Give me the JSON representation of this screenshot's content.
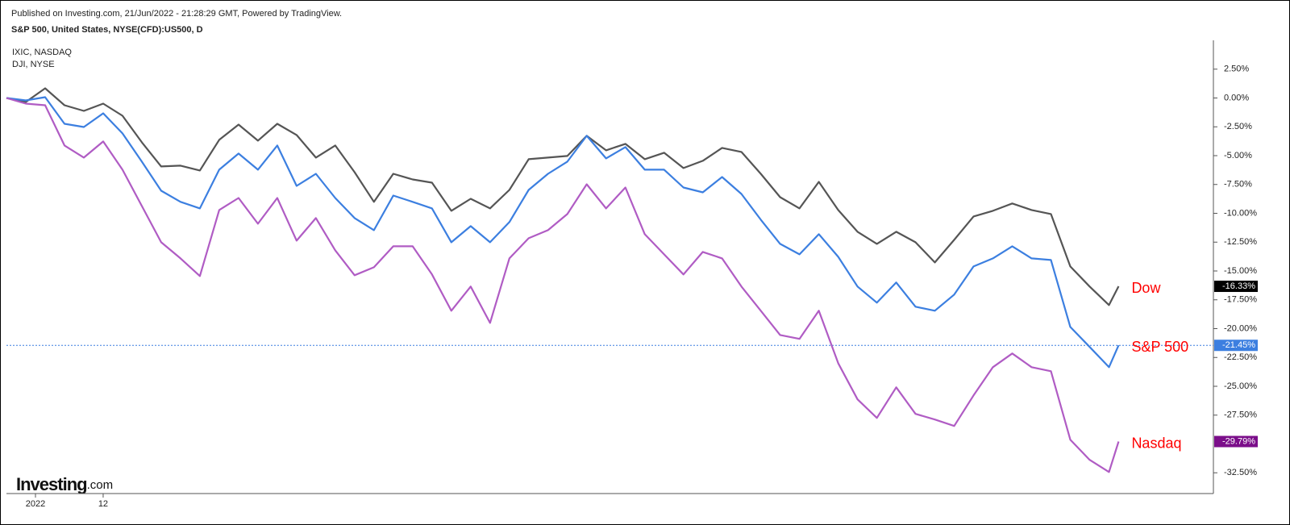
{
  "header": {
    "published": "Published on Investing.com, 21/Jun/2022 - 21:28:29 GMT, Powered by TradingView.",
    "logo": "Investing",
    "logo_suffix": ".com"
  },
  "chart_data": {
    "type": "line",
    "title": "S&P 500, United States, NYSE(CFD):US500, D",
    "symbols": [
      "IXIC, NASDAQ",
      "DJI, NYSE"
    ],
    "x": [
      0,
      2,
      4,
      6,
      8,
      10,
      12,
      14,
      16,
      18,
      20,
      22,
      24,
      26,
      28,
      30,
      32,
      34,
      36,
      38,
      40,
      42,
      44,
      46,
      48,
      50,
      52,
      54,
      56,
      58,
      60,
      62,
      64,
      66,
      68,
      70,
      72,
      74,
      76,
      78,
      80,
      82,
      84,
      86,
      88,
      90,
      92,
      94,
      96,
      98,
      100,
      102,
      104,
      106,
      108,
      110,
      112,
      114,
      115
    ],
    "xlim": [
      0,
      124.8
    ],
    "xticks": [
      {
        "value": 3,
        "label": "2022"
      },
      {
        "value": 10,
        "label": "12"
      }
    ],
    "ylim": [
      -34.3,
      5.0
    ],
    "yticks": [
      {
        "value": 2.5,
        "label": "2.50%"
      },
      {
        "value": 0,
        "label": "0.00%"
      },
      {
        "value": -2.5,
        "label": "-2.50%"
      },
      {
        "value": -5,
        "label": "-5.00%"
      },
      {
        "value": -7.5,
        "label": "-7.50%"
      },
      {
        "value": -10,
        "label": "-10.00%"
      },
      {
        "value": -12.5,
        "label": "-12.50%"
      },
      {
        "value": -15,
        "label": "-15.00%"
      },
      {
        "value": -17.5,
        "label": "-17.50%"
      },
      {
        "value": -20,
        "label": "-20.00%"
      },
      {
        "value": -22.5,
        "label": "-22.50%"
      },
      {
        "value": -25,
        "label": "-25.00%"
      },
      {
        "value": -27.5,
        "label": "-27.50%"
      },
      {
        "value": -32.5,
        "label": "-32.50%"
      }
    ],
    "series": [
      {
        "name": "Dow",
        "color": "#555555",
        "label_color": "#000000",
        "end_label": "-16.33%",
        "values": [
          0,
          -0.35,
          0.84,
          -0.63,
          -1.12,
          -0.49,
          -1.54,
          -3.84,
          -5.94,
          -5.87,
          -6.29,
          -3.63,
          -2.31,
          -3.7,
          -2.24,
          -3.21,
          -5.17,
          -4.12,
          -6.43,
          -9.01,
          -6.57,
          -7.06,
          -7.34,
          -9.78,
          -8.74,
          -9.57,
          -7.97,
          -5.31,
          -5.17,
          -5.03,
          -3.28,
          -4.54,
          -3.98,
          -5.31,
          -4.75,
          -6.08,
          -5.45,
          -4.33,
          -4.68,
          -6.57,
          -8.6,
          -9.57,
          -7.27,
          -9.71,
          -11.6,
          -12.65,
          -11.6,
          -12.51,
          -14.26,
          -12.3,
          -10.27,
          -9.78,
          -9.15,
          -9.71,
          -10.06,
          -14.61,
          -16.35,
          -17.96,
          -16.33
        ]
      },
      {
        "name": "S&P 500",
        "color": "#3c7fe0",
        "label_color": "#3c7fe0",
        "end_label": "-21.45%",
        "values": [
          0,
          -0.21,
          0.07,
          -2.24,
          -2.52,
          -1.33,
          -3.07,
          -5.52,
          -8.04,
          -9.01,
          -9.57,
          -6.22,
          -4.82,
          -6.22,
          -4.12,
          -7.62,
          -6.57,
          -8.67,
          -10.41,
          -11.46,
          -8.46,
          -9.01,
          -9.57,
          -12.51,
          -11.11,
          -12.51,
          -10.76,
          -7.97,
          -6.57,
          -5.52,
          -3.28,
          -5.24,
          -4.26,
          -6.22,
          -6.22,
          -7.76,
          -8.18,
          -6.85,
          -8.32,
          -10.55,
          -12.65,
          -13.56,
          -11.81,
          -13.77,
          -16.35,
          -17.75,
          -16.0,
          -18.1,
          -18.45,
          -17.05,
          -14.61,
          -13.91,
          -12.86,
          -13.91,
          -14.05,
          -19.85,
          -21.59,
          -23.34,
          -21.45
        ]
      },
      {
        "name": "Nasdaq",
        "color": "#b05cc4",
        "label_color": "#7b0e8a",
        "end_label": "-29.79%",
        "values": [
          0,
          -0.49,
          -0.63,
          -4.12,
          -5.17,
          -3.77,
          -6.22,
          -9.36,
          -12.51,
          -13.91,
          -15.44,
          -9.71,
          -8.67,
          -10.9,
          -8.67,
          -12.37,
          -10.41,
          -13.21,
          -15.37,
          -14.68,
          -12.86,
          -12.86,
          -15.3,
          -18.45,
          -16.35,
          -19.5,
          -13.91,
          -12.16,
          -11.46,
          -10.06,
          -7.48,
          -9.57,
          -7.76,
          -11.81,
          -13.56,
          -15.3,
          -13.35,
          -13.91,
          -16.35,
          -18.45,
          -20.55,
          -20.89,
          -18.45,
          -22.99,
          -26.13,
          -27.74,
          -25.09,
          -27.39,
          -27.88,
          -28.44,
          -25.79,
          -23.34,
          -22.15,
          -23.34,
          -23.69,
          -29.63,
          -31.38,
          -32.43,
          -29.79
        ]
      }
    ],
    "guide_series": 1,
    "annotation_color": "#ff0000"
  }
}
